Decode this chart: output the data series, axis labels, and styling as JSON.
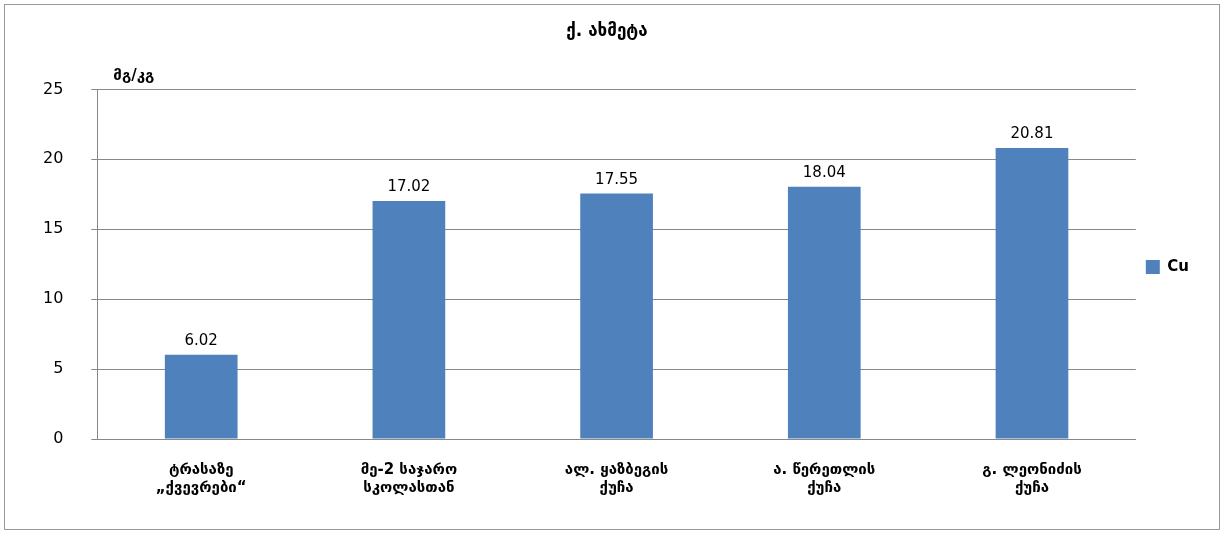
{
  "chart_data": {
    "type": "bar",
    "title": "ქ. ახმეტა",
    "ylabel": "მგ/კგ",
    "categories": [
      "ტრასაზე\n„ქვევრები“",
      "მე-2 საჯარო\nსკოლასთან",
      "ალ. ყაზბეგის\nქუჩა",
      "ა. წერეთლის\nქუჩა",
      "გ. ლეონიძის\nქუჩა"
    ],
    "series": [
      {
        "name": "Cu",
        "color": "#4f81bd",
        "values": [
          6.02,
          17.02,
          17.55,
          18.04,
          20.81
        ]
      }
    ],
    "ylim": [
      0,
      25
    ],
    "yticks": [
      0,
      5,
      10,
      15,
      20,
      25
    ],
    "grid": "y",
    "legend": "right",
    "data_labels": true
  }
}
